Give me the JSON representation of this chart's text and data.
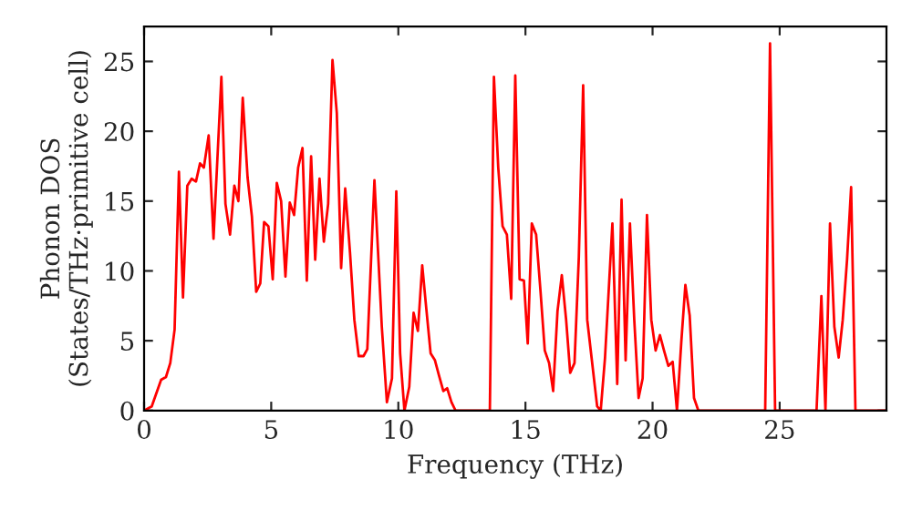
{
  "chart_data": {
    "type": "line",
    "xlabel": "Frequency (THz)",
    "ylabel": "Phonon DOS\n(States/THz·primitive cell)",
    "xlim": [
      0,
      29.2
    ],
    "ylim": [
      0,
      27.5
    ],
    "xticks": [
      0,
      5,
      10,
      15,
      20,
      25
    ],
    "yticks": [
      0,
      5,
      10,
      15,
      20,
      25
    ],
    "grid": false,
    "marker": "none",
    "line_style": "solid",
    "series": [
      {
        "color": "#ff0000",
        "x": [
          0,
          0.3,
          0.67,
          0.86,
          1.03,
          1.2,
          1.37,
          1.53,
          1.7,
          1.87,
          2.04,
          2.2,
          2.35,
          2.54,
          2.73,
          3.04,
          3.2,
          3.38,
          3.55,
          3.71,
          3.88,
          4.07,
          4.24,
          4.41,
          4.57,
          4.72,
          4.89,
          5.06,
          5.22,
          5.39,
          5.56,
          5.73,
          5.9,
          6.06,
          6.23,
          6.4,
          6.57,
          6.73,
          6.9,
          7.07,
          7.24,
          7.41,
          7.58,
          7.75,
          7.91,
          8.1,
          8.27,
          8.44,
          8.63,
          8.78,
          9.06,
          9.35,
          9.55,
          9.75,
          9.92,
          10.07,
          10.24,
          10.43,
          10.6,
          10.77,
          10.94,
          11.1,
          11.27,
          11.44,
          11.6,
          11.77,
          11.92,
          12.09,
          12.25,
          13.6,
          13.76,
          13.93,
          14.1,
          14.27,
          14.44,
          14.6,
          14.77,
          14.94,
          15.09,
          15.25,
          15.42,
          15.59,
          15.76,
          15.93,
          16.09,
          16.26,
          16.43,
          16.6,
          16.76,
          16.93,
          17.1,
          17.27,
          17.43,
          17.6,
          17.82,
          17.96,
          18.13,
          18.42,
          18.61,
          18.78,
          18.94,
          19.11,
          19.28,
          19.45,
          19.61,
          19.78,
          19.95,
          20.12,
          20.29,
          20.45,
          20.62,
          20.79,
          20.96,
          21.13,
          21.29,
          21.46,
          21.63,
          21.8,
          24.43,
          24.62,
          24.82,
          26.45,
          26.64,
          26.8,
          26.98,
          27.15,
          27.32,
          27.48,
          27.65,
          27.81,
          27.98,
          29.2
        ],
        "values": [
          0,
          0.3,
          2.2,
          2.4,
          3.4,
          5.8,
          17.1,
          8.1,
          16.1,
          16.6,
          16.4,
          17.7,
          17.4,
          19.7,
          12.3,
          23.9,
          14.8,
          12.6,
          16.1,
          15.0,
          22.4,
          16.7,
          13.9,
          8.5,
          9.1,
          13.5,
          13.2,
          9.4,
          16.3,
          15.0,
          9.6,
          14.9,
          14.0,
          17.4,
          18.8,
          9.3,
          18.2,
          10.8,
          16.6,
          12.1,
          14.8,
          25.1,
          21.3,
          10.2,
          15.9,
          11.3,
          6.5,
          3.9,
          3.9,
          4.4,
          16.5,
          6.0,
          0.6,
          2.3,
          15.7,
          4.1,
          0,
          1.7,
          7.0,
          5.7,
          10.4,
          7.3,
          4.1,
          3.6,
          2.5,
          1.4,
          1.6,
          0.6,
          0,
          0,
          23.9,
          17.4,
          13.2,
          12.6,
          8.0,
          24.0,
          9.4,
          9.3,
          4.8,
          13.4,
          12.6,
          8.6,
          4.3,
          3.4,
          1.4,
          7.1,
          9.7,
          6.5,
          2.7,
          3.4,
          11.0,
          23.3,
          6.5,
          3.8,
          0.3,
          0,
          3.8,
          13.4,
          1.9,
          15.1,
          3.6,
          13.4,
          6.5,
          0.9,
          2.3,
          14.0,
          6.5,
          4.3,
          5.4,
          4.3,
          3.2,
          3.5,
          0,
          4.9,
          9.0,
          6.8,
          0.9,
          0,
          0,
          26.3,
          0,
          0,
          8.2,
          0,
          13.4,
          6.0,
          3.8,
          6.5,
          10.8,
          16.0,
          0,
          0
        ]
      }
    ]
  }
}
